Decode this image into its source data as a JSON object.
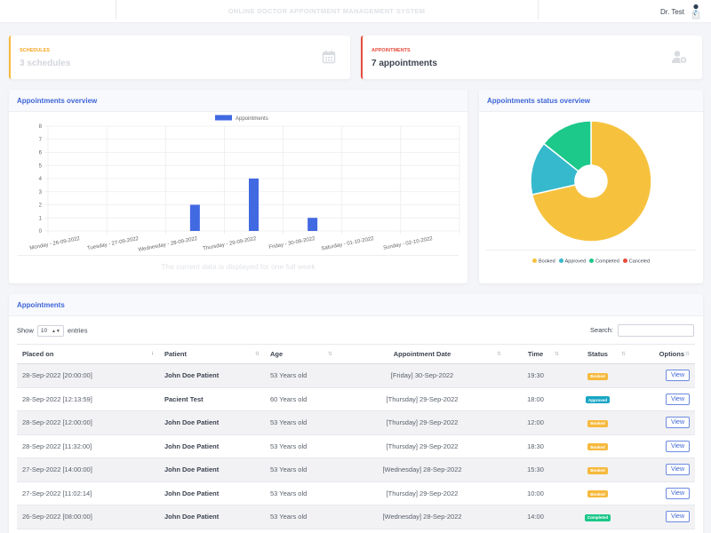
{
  "topbar": {
    "title": "ONLINE DOCTOR APPOINTMENT MANAGEMENT SYSTEM",
    "user_name": "Dr. Test"
  },
  "stats": {
    "schedules": {
      "label": "SCHEDULES",
      "value": "3 schedules",
      "icon": "calendar-icon",
      "color": "#f6b93b"
    },
    "appointments": {
      "label": "APPOINTMENTS",
      "value": "7 appointments",
      "icon": "user-plus-icon",
      "color": "#e74c3c"
    }
  },
  "overview": {
    "title": "Appointments overview",
    "note": "The current data is displayed for one full week"
  },
  "status_overview": {
    "title": "Appointments status overview"
  },
  "chart_data": [
    {
      "type": "bar",
      "categories": [
        "Monday - 26-09-2022",
        "Tuesday - 27-09-2022",
        "Wednesday - 28-09-2022",
        "Thursday - 29-09-2022",
        "Friday - 30-09-2022",
        "Saturday - 01-10-2022",
        "Sunday - 02-10-2022"
      ],
      "series": [
        {
          "name": "Appointments",
          "values": [
            0,
            0,
            2,
            4,
            1,
            0,
            0
          ],
          "color": "#4169e1"
        }
      ],
      "ylim": [
        0,
        8
      ],
      "yticks": [
        "0",
        "1",
        "2",
        "3",
        "4",
        "5",
        "6",
        "7",
        "8"
      ],
      "grid": true,
      "legend": "top"
    },
    {
      "type": "pie",
      "labels": [
        "Booked",
        "Approved",
        "Completed",
        "Canceled"
      ],
      "values": [
        5,
        1,
        1,
        0
      ],
      "colors": [
        "#f6c23e",
        "#36b9cc",
        "#1cc88a",
        "#e74a3b"
      ],
      "donut": true,
      "legend": "bottom"
    }
  ],
  "table": {
    "title": "Appointments",
    "show_label": "Show",
    "entries_value": "10",
    "entries_label": "entries",
    "search_label": "Search:",
    "columns": [
      "Placed on",
      "Patient",
      "Age",
      "Appointment Date",
      "Time",
      "Status",
      "Options"
    ],
    "rows": [
      {
        "placed": "28-Sep-2022 [20:00:00]",
        "patient": "John Doe Patient",
        "age": "53 Years old",
        "date": "[Friday] 30-Sep-2022",
        "time": "19:30",
        "status": "Booked",
        "action": "View"
      },
      {
        "placed": "28-Sep-2022 [12:13:59]",
        "patient": "Pacient Test",
        "age": "60 Years old",
        "date": "[Thursday] 29-Sep-2022",
        "time": "18:00",
        "status": "Approved",
        "action": "View"
      },
      {
        "placed": "28-Sep-2022 [12:00:00]",
        "patient": "John Doe Patient",
        "age": "53 Years old",
        "date": "[Thursday] 29-Sep-2022",
        "time": "12:00",
        "status": "Booked",
        "action": "View"
      },
      {
        "placed": "28-Sep-2022 [11:32:00]",
        "patient": "John Doe Patient",
        "age": "53 Years old",
        "date": "[Thursday] 29-Sep-2022",
        "time": "18:30",
        "status": "Booked",
        "action": "View"
      },
      {
        "placed": "27-Sep-2022 [14:00:00]",
        "patient": "John Doe Patient",
        "age": "53 Years old",
        "date": "[Wednesday] 28-Sep-2022",
        "time": "15:30",
        "status": "Booked",
        "action": "View"
      },
      {
        "placed": "27-Sep-2022 [11:02:14]",
        "patient": "John Doe Patient",
        "age": "53 Years old",
        "date": "[Thursday] 29-Sep-2022",
        "time": "10:00",
        "status": "Booked",
        "action": "View"
      },
      {
        "placed": "26-Sep-2022 [08:00:00]",
        "patient": "John Doe Patient",
        "age": "53 Years old",
        "date": "[Wednesday] 28-Sep-2022",
        "time": "14:00",
        "status": "Completed",
        "action": "View"
      }
    ]
  }
}
